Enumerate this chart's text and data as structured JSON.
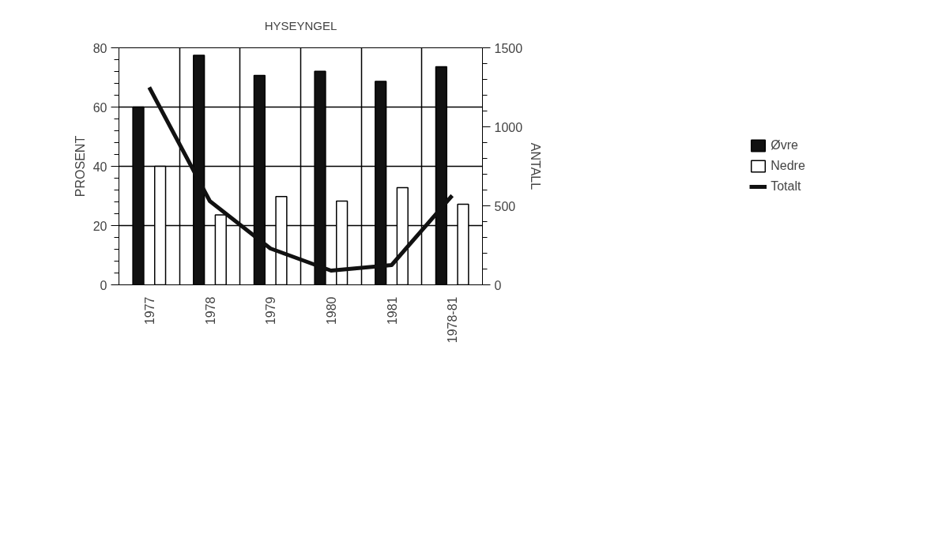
{
  "chart_data": {
    "type": "bar",
    "title": "HYSEYNGEL",
    "ylabel": "PROSENT",
    "y2label": "ANTALL",
    "categories": [
      "1977",
      "1978",
      "1979",
      "1980",
      "1981",
      "1978-81"
    ],
    "series": [
      {
        "name": "Øvre",
        "color": "#111111",
        "values": [
          60,
          77.5,
          70.7,
          72.1,
          68.7,
          73.6
        ]
      },
      {
        "name": "Nedre",
        "color": "#ffffff",
        "values": [
          40,
          23.6,
          29.8,
          28.3,
          32.8,
          27.2
        ]
      },
      {
        "name": "Totalt",
        "type": "line",
        "axis": "y2",
        "color": "#111111",
        "values": [
          1250,
          530,
          230,
          90,
          125,
          565
        ]
      }
    ],
    "ylim": [
      0,
      80
    ],
    "yticks": [
      0,
      20,
      40,
      60,
      80
    ],
    "y2lim": [
      0,
      1500
    ],
    "y2ticks": [
      0,
      500,
      1000,
      1500
    ],
    "grid": true,
    "legend": "right"
  }
}
